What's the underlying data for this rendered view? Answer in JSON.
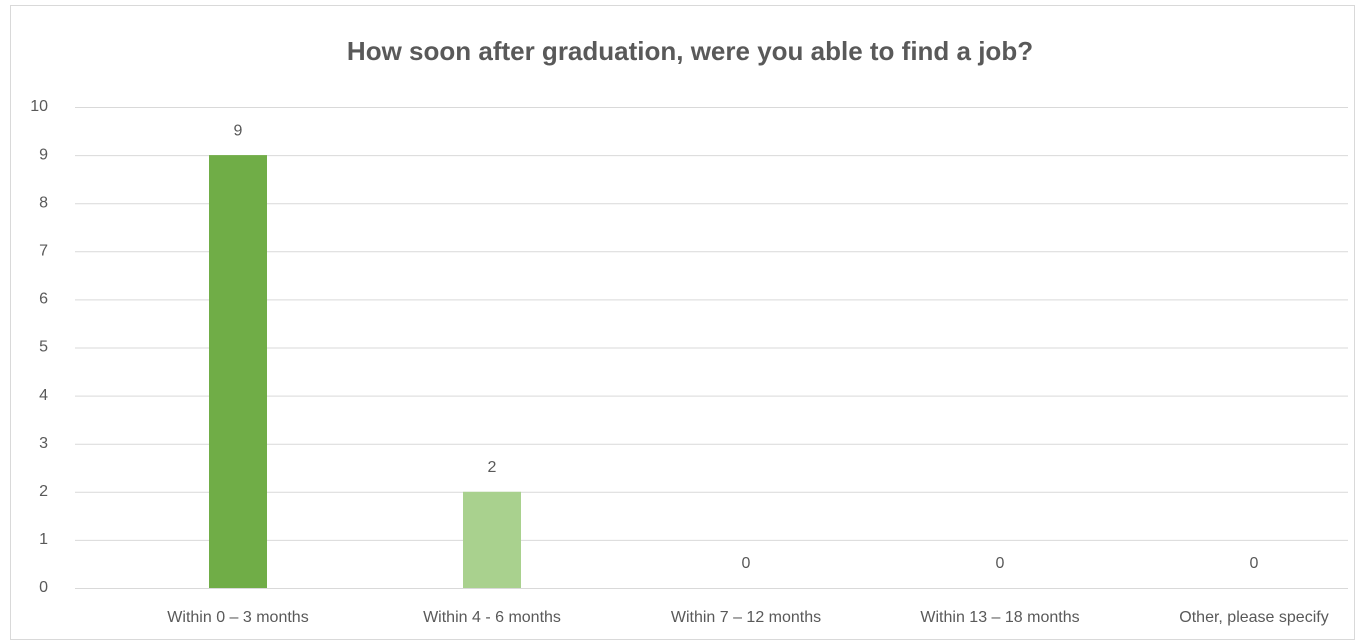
{
  "chart_data": {
    "type": "bar",
    "title": "How soon after graduation, were you able to find a job?",
    "categories": [
      "Within 0 – 3 months",
      "Within 4  - 6 months",
      "Within 7 – 12 months",
      "Within 13 – 18 months",
      "Other, please specify"
    ],
    "values": [
      9,
      2,
      0,
      0,
      0
    ],
    "colors": [
      "#70ad47",
      "#a9d18e",
      "#548235",
      "#c5e0b4",
      "#375623"
    ],
    "ylim": [
      0,
      10
    ],
    "yticks": [
      0,
      1,
      2,
      3,
      4,
      5,
      6,
      7,
      8,
      9,
      10
    ],
    "grid": true
  }
}
